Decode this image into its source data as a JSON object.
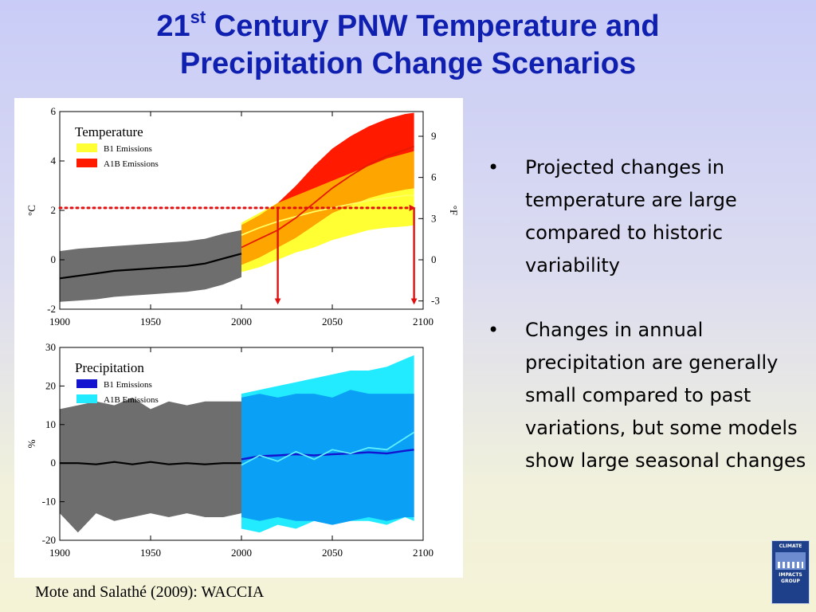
{
  "slide": {
    "title_line1_prefix": "21",
    "title_line1_sup": "st",
    "title_line1_rest": " Century PNW Temperature and",
    "title_line2": "Precipitation Change Scenarios",
    "bullets": [
      "Projected changes in temperature are large compared to historic variability",
      "Changes in annual precipitation are generally small compared to past variations, but some models show large seasonal changes"
    ],
    "bullet_glyph": "•",
    "caption": "Mote and Salathé (2009): WACCIA",
    "logo_lines": [
      "CLIMATE",
      "IMPACTS",
      "GROUP"
    ]
  },
  "colors": {
    "title": "#0f1fb0",
    "historic_band": "#6e6e6e",
    "b1_temp": "#ffff33",
    "a1b_temp": "#ff1a00",
    "overlap_temp": "#ffa500",
    "b1_precip": "#1414d0",
    "a1b_precip": "#22eaff",
    "overlap_precip": "#0aa0f5",
    "arrow": "#e01010"
  },
  "chart_data": [
    {
      "type": "area",
      "legend_title": "Temperature",
      "legend_position": "top-left",
      "ylabel_left": "°C",
      "ylabel_right": "°F",
      "xlim": [
        1900,
        2100
      ],
      "ylim": [
        -2,
        6
      ],
      "x_ticks": [
        1900,
        1950,
        2000,
        2050,
        2100
      ],
      "y_ticks_left": [
        -2,
        0,
        2,
        4,
        6
      ],
      "y_ticks_right": [
        -3,
        0,
        3,
        6,
        9
      ],
      "series": [
        {
          "name": "Historic",
          "x": [
            1900,
            1910,
            1920,
            1930,
            1940,
            1950,
            1960,
            1970,
            1980,
            1990,
            2000
          ],
          "mean": [
            -0.75,
            -0.65,
            -0.55,
            -0.45,
            -0.4,
            -0.35,
            -0.3,
            -0.25,
            -0.15,
            0.05,
            0.25
          ],
          "lower": [
            -1.7,
            -1.65,
            -1.6,
            -1.5,
            -1.45,
            -1.4,
            -1.35,
            -1.3,
            -1.2,
            -1.0,
            -0.7
          ],
          "upper": [
            0.35,
            0.45,
            0.5,
            0.55,
            0.6,
            0.65,
            0.7,
            0.75,
            0.85,
            1.05,
            1.2
          ]
        },
        {
          "name": "B1 Emissions",
          "x": [
            2000,
            2010,
            2020,
            2030,
            2040,
            2050,
            2060,
            2070,
            2080,
            2090,
            2095
          ],
          "mean": [
            1.0,
            1.3,
            1.55,
            1.75,
            1.95,
            2.1,
            2.25,
            2.4,
            2.5,
            2.6,
            2.6
          ],
          "lower": [
            -0.5,
            -0.3,
            0.0,
            0.3,
            0.5,
            0.8,
            1.0,
            1.2,
            1.3,
            1.35,
            1.4
          ],
          "upper": [
            1.5,
            1.9,
            2.3,
            2.6,
            2.9,
            3.2,
            3.5,
            3.8,
            4.1,
            4.3,
            4.4
          ]
        },
        {
          "name": "A1B Emissions",
          "x": [
            2000,
            2010,
            2020,
            2030,
            2040,
            2050,
            2060,
            2070,
            2080,
            2090,
            2095
          ],
          "mean": [
            0.5,
            0.85,
            1.2,
            1.7,
            2.3,
            2.9,
            3.4,
            3.85,
            4.2,
            4.45,
            4.6
          ],
          "lower": [
            -0.2,
            0.1,
            0.5,
            0.9,
            1.4,
            1.9,
            2.2,
            2.5,
            2.7,
            2.85,
            2.9
          ],
          "upper": [
            1.4,
            1.8,
            2.3,
            3.0,
            3.8,
            4.5,
            5.0,
            5.4,
            5.7,
            5.9,
            5.95
          ]
        }
      ],
      "annotations": [
        {
          "type": "dotted-arrow",
          "from": [
            1900,
            2.1
          ],
          "to": [
            2095,
            2.1
          ]
        },
        {
          "type": "arrow",
          "from": [
            2020,
            2.1
          ],
          "to": [
            2020,
            -1.75
          ]
        },
        {
          "type": "arrow",
          "from": [
            2095,
            2.1
          ],
          "to": [
            2095,
            -1.75
          ]
        }
      ]
    },
    {
      "type": "area",
      "legend_title": "Precipitation",
      "legend_position": "top-left",
      "ylabel_left": "%",
      "xlim": [
        1900,
        2100
      ],
      "ylim": [
        -20,
        30
      ],
      "x_ticks": [
        1900,
        1950,
        2000,
        2050,
        2100
      ],
      "y_ticks_left": [
        -20,
        -10,
        0,
        10,
        20,
        30
      ],
      "series": [
        {
          "name": "Historic",
          "x": [
            1900,
            1910,
            1920,
            1930,
            1940,
            1950,
            1960,
            1970,
            1980,
            1990,
            2000
          ],
          "mean": [
            0,
            0,
            -0.3,
            0.3,
            -0.3,
            0.3,
            -0.3,
            0,
            -0.3,
            0,
            0
          ],
          "lower": [
            -13,
            -18,
            -13,
            -15,
            -14,
            -13,
            -14,
            -13,
            -14,
            -14,
            -13
          ],
          "upper": [
            14,
            15,
            16,
            15,
            17,
            14,
            16,
            15,
            16,
            16,
            16
          ]
        },
        {
          "name": "B1 Emissions",
          "x": [
            2000,
            2010,
            2020,
            2030,
            2040,
            2050,
            2060,
            2070,
            2080,
            2090,
            2095
          ],
          "mean": [
            1,
            1.8,
            2,
            2.3,
            2,
            2.3,
            2.5,
            2.8,
            2.5,
            3.2,
            3.5
          ],
          "lower": [
            -14,
            -15,
            -14,
            -15,
            -15,
            -16,
            -15,
            -14,
            -15,
            -14,
            -14
          ],
          "upper": [
            17,
            18,
            17,
            18,
            18,
            17,
            19,
            18,
            18,
            18,
            18
          ]
        },
        {
          "name": "A1B Emissions",
          "x": [
            2000,
            2010,
            2020,
            2030,
            2040,
            2050,
            2060,
            2070,
            2080,
            2090,
            2095
          ],
          "mean": [
            -0.5,
            2,
            0.5,
            3,
            1,
            3.5,
            2.5,
            4,
            3.5,
            6.5,
            8
          ],
          "lower": [
            -17,
            -18,
            -16,
            -17,
            -15,
            -16,
            -15,
            -15,
            -16,
            -14,
            -15
          ],
          "upper": [
            18,
            19,
            20,
            21,
            22,
            23,
            24,
            24,
            25,
            27,
            28
          ]
        }
      ]
    }
  ]
}
